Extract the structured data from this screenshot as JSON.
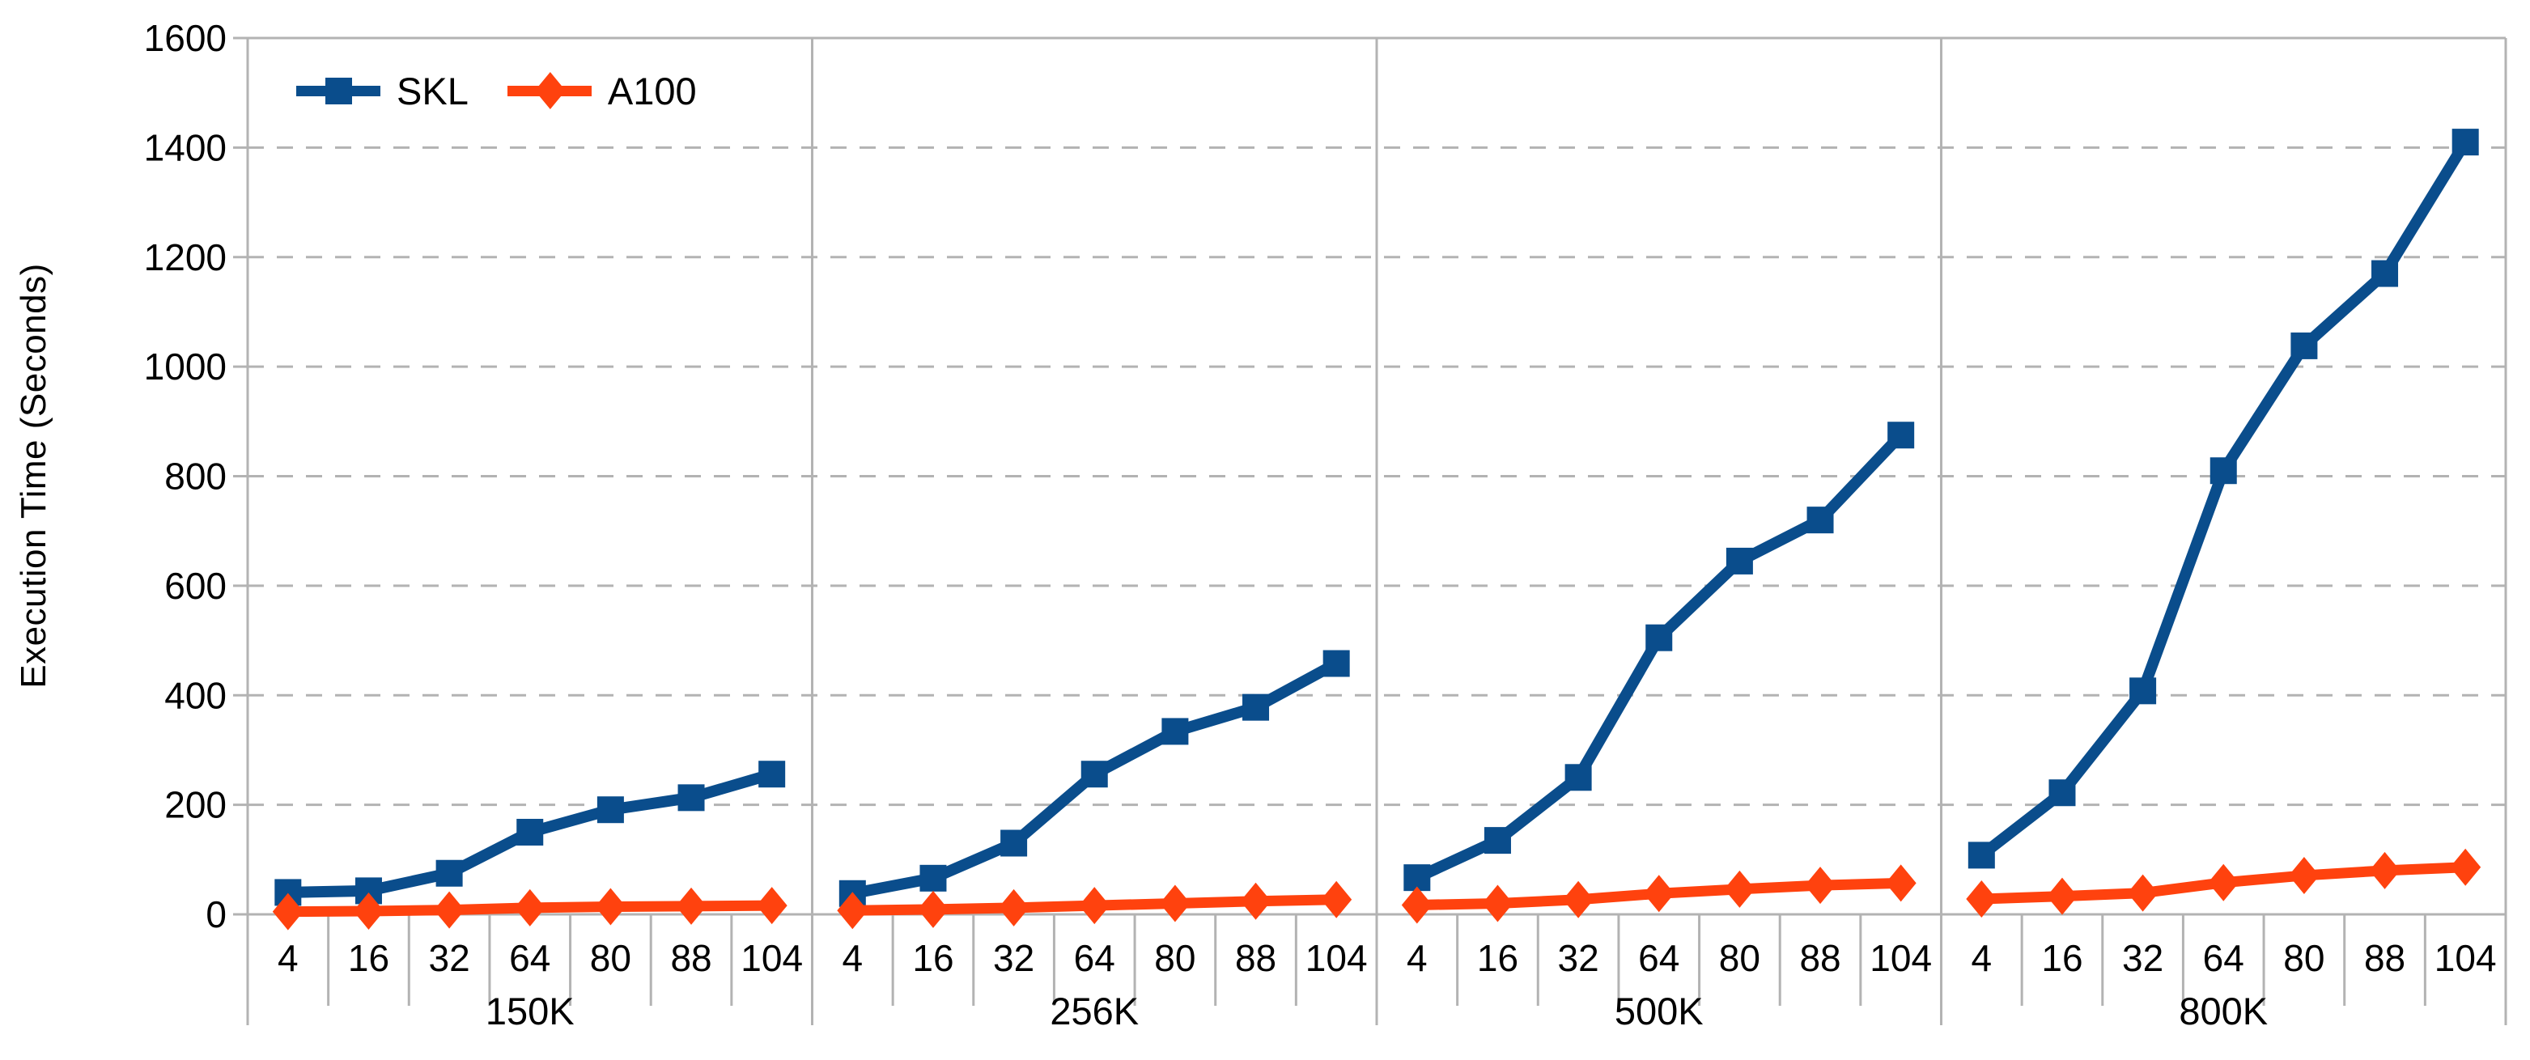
{
  "chart_data": {
    "type": "line",
    "title": "",
    "ylabel": "Execution Time (Seconds)",
    "xlabel": "",
    "ylim": [
      0,
      1600
    ],
    "y_tick_labels": [
      "0",
      "200",
      "400",
      "600",
      "800",
      "1000",
      "1200",
      "1400",
      "1600"
    ],
    "grid": "horizontal dashed gridlines every 200, solid baseline at 0 and top line at 1600, light-gray vertical panel separators",
    "legend_position": "top-left inside plot",
    "x_tick_labels": [
      "4",
      "16",
      "32",
      "64",
      "80",
      "88",
      "104"
    ],
    "series_styles": [
      {
        "name": "SKL",
        "color": "#0a4d8c",
        "marker": "square"
      },
      {
        "name": "A100",
        "color": "#ff420e",
        "marker": "diamond"
      }
    ],
    "legend": [
      "SKL",
      "A100"
    ],
    "panels": [
      {
        "label": "150K",
        "series": [
          {
            "name": "SKL",
            "values": [
              40,
              43,
              75,
              150,
              191,
              213,
              256
            ]
          },
          {
            "name": "A100",
            "values": [
              5,
              6,
              8,
              12,
              14,
              15,
              16
            ]
          }
        ]
      },
      {
        "label": "256K",
        "series": [
          {
            "name": "SKL",
            "values": [
              38,
              66,
              130,
              256,
              334,
              378,
              458
            ]
          },
          {
            "name": "A100",
            "values": [
              7,
              9,
              12,
              16,
              20,
              24,
              27
            ]
          }
        ]
      },
      {
        "label": "500K",
        "series": [
          {
            "name": "SKL",
            "values": [
              67,
              135,
              250,
              505,
              645,
              720,
              875
            ]
          },
          {
            "name": "A100",
            "values": [
              17,
              20,
              27,
              38,
              46,
              53,
              57
            ]
          }
        ]
      },
      {
        "label": "800K",
        "series": [
          {
            "name": "SKL",
            "values": [
              108,
              222,
              408,
              810,
              1038,
              1170,
              1410
            ]
          },
          {
            "name": "A100",
            "values": [
              28,
              33,
              39,
              58,
              71,
              80,
              86
            ]
          }
        ]
      }
    ],
    "axis_color": "#b3b3b3"
  }
}
